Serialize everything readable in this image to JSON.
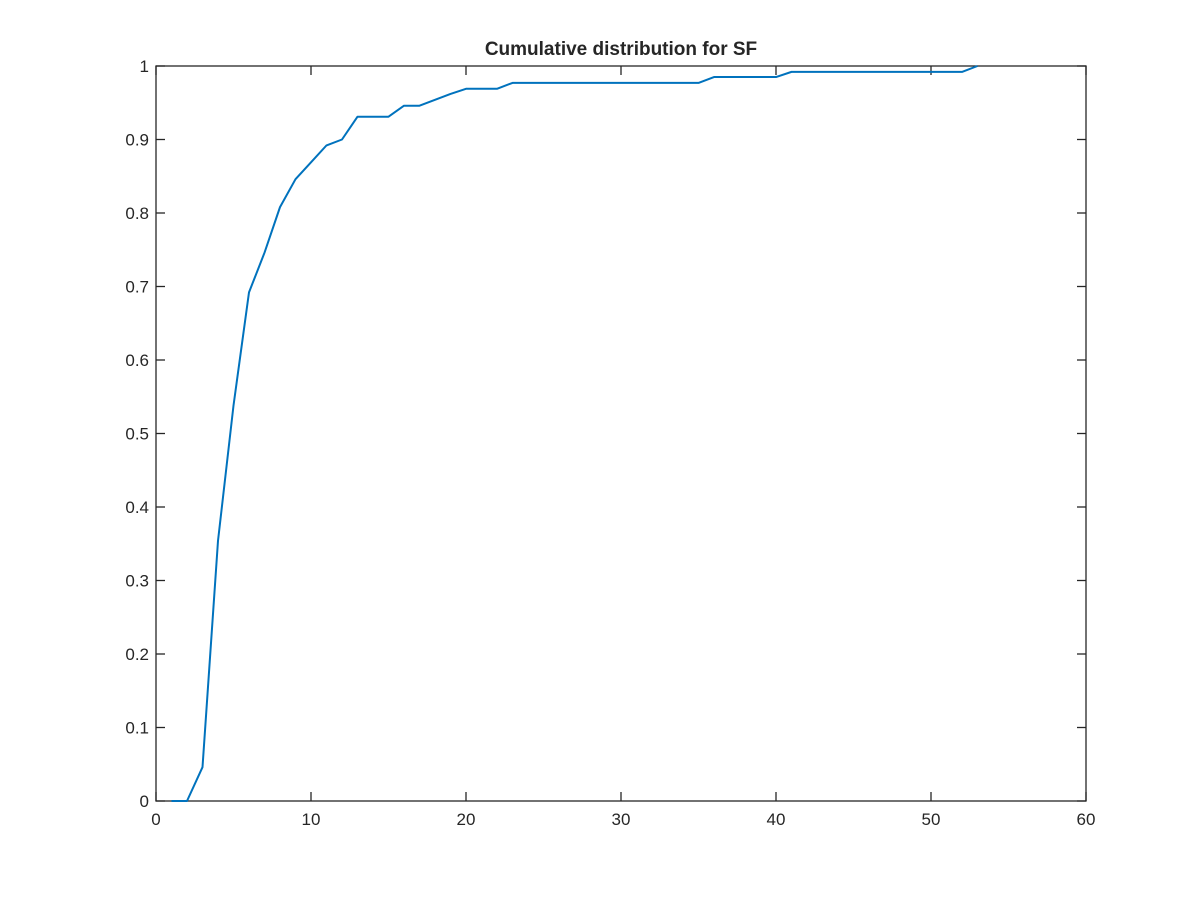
{
  "chart_data": {
    "type": "line",
    "title": "Cumulative distribution for SF",
    "xlabel": "",
    "ylabel": "",
    "xlim": [
      0,
      60
    ],
    "ylim": [
      0,
      1
    ],
    "xticks": [
      0,
      10,
      20,
      30,
      40,
      50,
      60
    ],
    "yticks": [
      0,
      0.1,
      0.2,
      0.3,
      0.4,
      0.5,
      0.6,
      0.7,
      0.8,
      0.9,
      1
    ],
    "xtick_labels": [
      "0",
      "10",
      "20",
      "30",
      "40",
      "50",
      "60"
    ],
    "ytick_labels": [
      "0",
      "0.1",
      "0.2",
      "0.3",
      "0.4",
      "0.5",
      "0.6",
      "0.7",
      "0.8",
      "0.9",
      "1"
    ],
    "grid": false,
    "line_color": "#0072BD",
    "series": [
      {
        "x": [
          1,
          2,
          3,
          4,
          5,
          6,
          7,
          8,
          9,
          10,
          11,
          12,
          13,
          14,
          15,
          16,
          17,
          18,
          19,
          20,
          21,
          22,
          23,
          24,
          25,
          26,
          27,
          28,
          29,
          30,
          31,
          32,
          33,
          34,
          35,
          36,
          37,
          38,
          39,
          40,
          41,
          42,
          43,
          44,
          45,
          46,
          47,
          48,
          49,
          50,
          51,
          52,
          53
        ],
        "values": [
          0,
          0,
          0.046,
          0.354,
          0.538,
          0.692,
          0.746,
          0.808,
          0.846,
          0.869,
          0.892,
          0.9,
          0.931,
          0.931,
          0.931,
          0.946,
          0.946,
          0.954,
          0.962,
          0.969,
          0.969,
          0.969,
          0.977,
          0.977,
          0.977,
          0.977,
          0.977,
          0.977,
          0.977,
          0.977,
          0.977,
          0.977,
          0.977,
          0.977,
          0.977,
          0.985,
          0.985,
          0.985,
          0.985,
          0.985,
          0.992,
          0.992,
          0.992,
          0.992,
          0.992,
          0.992,
          0.992,
          0.992,
          0.992,
          0.992,
          0.992,
          0.992,
          1
        ]
      }
    ]
  }
}
